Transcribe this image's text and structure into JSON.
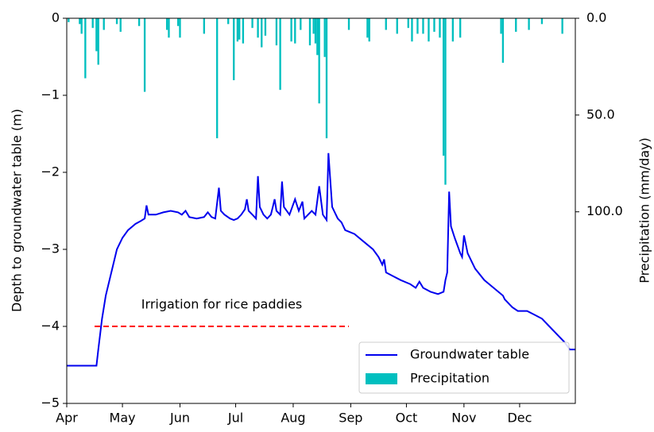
{
  "chart_data": {
    "type": "line",
    "ylabel": "Depth to groundwater table (m)",
    "y2label": "Precipitation (mm/day)",
    "xlim": [
      0,
      274
    ],
    "xticks": [
      {
        "value": 0,
        "label": "Apr"
      },
      {
        "value": 30,
        "label": "May"
      },
      {
        "value": 61,
        "label": "Jun"
      },
      {
        "value": 91,
        "label": "Jul"
      },
      {
        "value": 122,
        "label": "Aug"
      },
      {
        "value": 153,
        "label": "Sep"
      },
      {
        "value": 183,
        "label": "Oct"
      },
      {
        "value": 214,
        "label": "Nov"
      },
      {
        "value": 244,
        "label": "Dec"
      }
    ],
    "ylim": [
      -5,
      0
    ],
    "yticks": [
      0,
      {
        "value": -1,
        "label": "−1"
      },
      {
        "value": -2,
        "label": "−2"
      },
      {
        "value": -3,
        "label": "−3"
      },
      {
        "value": -4,
        "label": "−4"
      },
      {
        "value": -5,
        "label": "−5"
      }
    ],
    "y2lim": [
      199,
      0
    ],
    "y2ticks": [
      {
        "value": 0,
        "label": "0.0"
      },
      {
        "value": 50,
        "label": "50.0"
      },
      {
        "value": 100,
        "label": "100.0"
      }
    ],
    "legend": "lower right",
    "series": [
      {
        "name": "Groundwater table",
        "type": "line",
        "color": "#0000ee",
        "x": [
          0,
          16,
          17,
          19,
          21,
          24,
          27,
          30,
          33,
          37,
          40,
          42,
          43,
          44,
          48,
          52,
          56,
          60,
          62,
          64,
          66,
          70,
          74,
          76,
          78,
          80,
          82,
          83,
          85,
          88,
          90,
          92,
          94,
          96,
          97,
          98,
          100,
          102,
          103,
          104,
          106,
          108,
          110,
          111,
          112,
          113,
          115,
          116,
          117,
          120,
          123,
          125,
          127,
          128,
          132,
          134,
          136,
          138,
          140,
          141,
          143,
          146,
          148,
          150,
          155,
          160,
          165,
          168,
          170,
          171,
          172,
          176,
          180,
          185,
          188,
          190,
          192,
          196,
          200,
          203,
          204,
          205,
          206,
          207,
          209,
          212,
          213,
          214,
          216,
          220,
          225,
          230,
          235,
          236,
          238,
          240,
          243,
          248,
          252,
          256,
          260,
          264,
          268,
          271,
          274
        ],
        "values": [
          -4.51,
          -4.51,
          -4.3,
          -3.9,
          -3.6,
          -3.3,
          -3.0,
          -2.85,
          -2.75,
          -2.67,
          -2.63,
          -2.6,
          -2.43,
          -2.55,
          -2.55,
          -2.52,
          -2.5,
          -2.52,
          -2.55,
          -2.5,
          -2.58,
          -2.6,
          -2.58,
          -2.52,
          -2.58,
          -2.6,
          -2.2,
          -2.5,
          -2.55,
          -2.6,
          -2.62,
          -2.6,
          -2.55,
          -2.48,
          -2.35,
          -2.5,
          -2.55,
          -2.6,
          -2.05,
          -2.45,
          -2.55,
          -2.6,
          -2.55,
          -2.45,
          -2.35,
          -2.5,
          -2.55,
          -2.12,
          -2.45,
          -2.55,
          -2.35,
          -2.5,
          -2.38,
          -2.6,
          -2.5,
          -2.55,
          -2.18,
          -2.55,
          -2.62,
          -1.75,
          -2.45,
          -2.6,
          -2.65,
          -2.75,
          -2.8,
          -2.9,
          -3.0,
          -3.1,
          -3.2,
          -3.13,
          -3.3,
          -3.35,
          -3.4,
          -3.45,
          -3.5,
          -3.42,
          -3.5,
          -3.55,
          -3.58,
          -3.55,
          -3.4,
          -3.3,
          -2.25,
          -2.7,
          -2.85,
          -3.05,
          -3.1,
          -2.82,
          -3.05,
          -3.25,
          -3.4,
          -3.5,
          -3.6,
          -3.65,
          -3.7,
          -3.75,
          -3.8,
          -3.8,
          -3.85,
          -3.9,
          -4.0,
          -4.1,
          -4.2,
          -4.3,
          -4.3
        ]
      },
      {
        "name": "Precipitation",
        "type": "bar",
        "axis": "y2",
        "color": "#00bfbf",
        "x": [
          1,
          7,
          8,
          10,
          14,
          16,
          17,
          20,
          27,
          29,
          39,
          42,
          54,
          55,
          60,
          61,
          74,
          81,
          87,
          90,
          92,
          93,
          95,
          100,
          103,
          105,
          107,
          113,
          115,
          121,
          123,
          126,
          131,
          133,
          134,
          135,
          136,
          139,
          140,
          152,
          162,
          163,
          172,
          178,
          184,
          186,
          189,
          192,
          195,
          198,
          201,
          203,
          204,
          208,
          212,
          234,
          235,
          242,
          249,
          256,
          267
        ],
        "values": [
          2,
          3,
          8,
          31,
          5,
          17,
          24,
          6,
          3,
          7,
          4,
          38,
          6,
          10,
          4,
          10,
          8,
          62,
          3,
          32,
          12,
          11,
          13,
          5,
          10,
          15,
          9,
          14,
          37,
          12,
          13,
          6,
          14,
          8,
          13,
          19,
          44,
          20,
          62,
          6,
          10,
          12,
          6,
          8,
          5,
          12,
          8,
          8,
          12,
          7,
          10,
          71,
          86,
          12,
          10,
          8,
          23,
          7,
          6,
          3,
          8
        ]
      }
    ],
    "annotations": [
      {
        "text": "Irrigation for rice paddies",
        "color": "#ff0000",
        "x": [
          15,
          152
        ],
        "y": -4
      }
    ]
  }
}
